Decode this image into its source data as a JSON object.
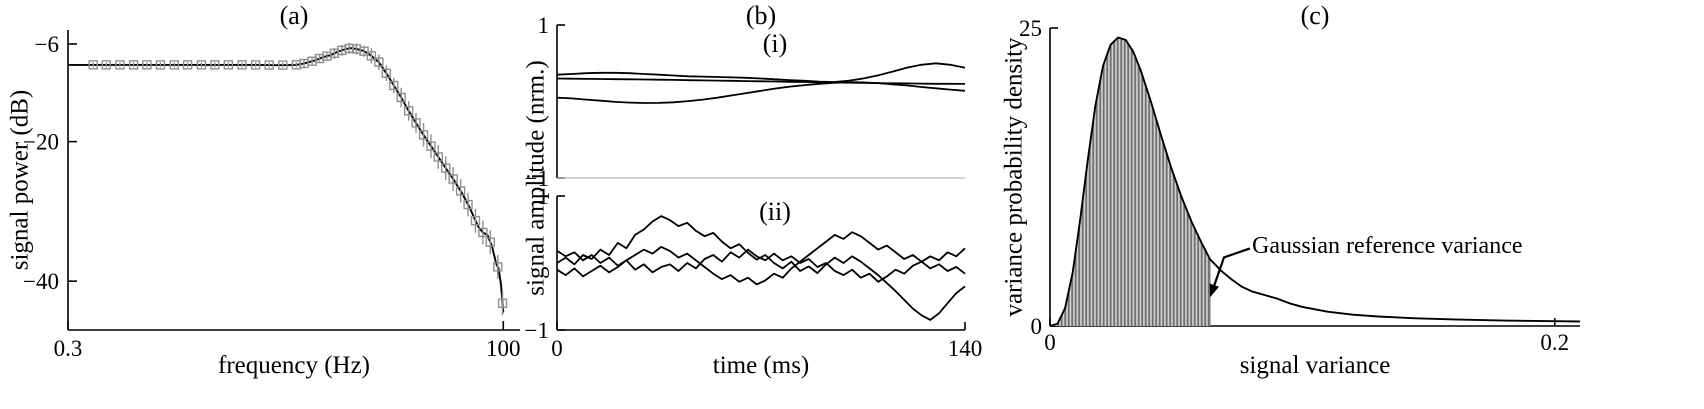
{
  "panels": {
    "a": {
      "title": "(a)",
      "xlabel": "frequency (Hz)",
      "ylabel": "signal power (dB)"
    },
    "b": {
      "title": "(b)",
      "sub_i": "(i)",
      "sub_ii": "(ii)",
      "xlabel": "time (ms)",
      "ylabel": "signal amplitude (nrm.)"
    },
    "c": {
      "title": "(c)",
      "xlabel": "signal variance",
      "ylabel": "variance probability density",
      "annotation": "Gaussian reference variance"
    }
  },
  "colors": {
    "line": "#000000",
    "marker": "#8f8f8f",
    "hatch_dark": "#6f6f6f",
    "hatch_light": "#cfcfcf",
    "separator": "#b8b8b8",
    "axis": "#000000"
  },
  "chart_data": [
    {
      "id": "a-power-spectrum",
      "type": "line",
      "title": "(a)",
      "xlabel": "frequency (Hz)",
      "ylabel": "signal power (dB)",
      "xscale": "log",
      "xlim": [
        0.3,
        125
      ],
      "ylim": [
        -47,
        -4
      ],
      "xticks": [
        0.3,
        100
      ],
      "yticks": [
        -6,
        -20,
        -40
      ],
      "freq": [
        0.3,
        0.4,
        0.5,
        0.65,
        0.85,
        1.1,
        1.4,
        1.8,
        2.3,
        3.0,
        3.8,
        4.9,
        6.3,
        7.0,
        8.0,
        9.0,
        10.0,
        11.0,
        12.0,
        13.0,
        14.0,
        15.5,
        17.0,
        19.0,
        21.0,
        23.0,
        25.5,
        28.0,
        31.0,
        34.0,
        38.0,
        42.0,
        47.0,
        52.0,
        58.0,
        64.0,
        68.0,
        72.0,
        76.0,
        81.0,
        86.0,
        91.0,
        94.0,
        97.0,
        100.0
      ],
      "power_db": [
        -9.0,
        -9.0,
        -9.0,
        -9.0,
        -9.0,
        -9.0,
        -9.0,
        -9.0,
        -9.0,
        -9.0,
        -9.0,
        -9.05,
        -9.0,
        -8.8,
        -8.4,
        -7.9,
        -7.6,
        -7.1,
        -6.8,
        -6.6,
        -6.7,
        -7.0,
        -7.6,
        -8.6,
        -10.2,
        -11.8,
        -13.6,
        -15.4,
        -17.2,
        -18.8,
        -20.6,
        -22.2,
        -24.0,
        -25.6,
        -27.5,
        -29.5,
        -31.0,
        -32.3,
        -33.0,
        -33.4,
        -35.0,
        -37.5,
        -38.2,
        -40.5,
        -44.5
      ],
      "marker_freq": [
        0.42,
        0.5,
        0.6,
        0.72,
        0.86,
        1.03,
        1.24,
        1.48,
        1.78,
        2.13,
        2.55,
        3.06,
        3.67,
        4.4,
        5.27,
        6.32,
        7.0,
        7.8,
        8.6,
        9.5,
        10.5,
        11.6,
        12.8,
        14.1,
        15.6,
        17.2,
        19.0,
        21.0,
        23.2,
        25.6,
        28.3,
        31.2,
        34.5,
        38.1,
        42.0,
        46.4,
        51.2,
        56.6,
        62.5,
        69.0,
        76.2,
        84.1,
        92.9,
        99.0
      ],
      "marker_err_db": [
        0.35,
        0.35,
        0.35,
        0.35,
        0.35,
        0.35,
        0.35,
        0.35,
        0.35,
        0.35,
        0.35,
        0.35,
        0.35,
        0.35,
        0.35,
        0.35,
        0.5,
        0.5,
        0.5,
        0.5,
        0.8,
        0.8,
        0.8,
        0.8,
        0.8,
        1.1,
        1.1,
        1.1,
        1.1,
        1.4,
        1.4,
        1.4,
        1.7,
        1.7,
        1.7,
        1.7,
        1.7,
        1.7,
        1.7,
        1.7,
        1.7,
        1.7,
        1.7,
        1.7
      ]
    },
    {
      "id": "b-i-smooth-signals",
      "type": "line",
      "panel_label": "(i)",
      "xlim": [
        0,
        140
      ],
      "ylim": [
        -1,
        1
      ],
      "yticks": [
        1,
        -1
      ],
      "series": [
        [
          0.35,
          0.36,
          0.37,
          0.375,
          0.375,
          0.37,
          0.36,
          0.35,
          0.34,
          0.33,
          0.325,
          0.32,
          0.315,
          0.31,
          0.3,
          0.29,
          0.28,
          0.27,
          0.26,
          0.255,
          0.27,
          0.3,
          0.34,
          0.39,
          0.44,
          0.48,
          0.5,
          0.48,
          0.44
        ],
        [
          0.3,
          0.298,
          0.296,
          0.294,
          0.292,
          0.29,
          0.288,
          0.285,
          0.282,
          0.279,
          0.276,
          0.273,
          0.27,
          0.267,
          0.264,
          0.261,
          0.258,
          0.255,
          0.252,
          0.249,
          0.246,
          0.243,
          0.24,
          0.238,
          0.236,
          0.234,
          0.232,
          0.231,
          0.23
        ],
        [
          0.05,
          0.04,
          0.025,
          0.01,
          -0.005,
          -0.015,
          -0.02,
          -0.018,
          -0.01,
          0.005,
          0.025,
          0.05,
          0.08,
          0.11,
          0.14,
          0.17,
          0.195,
          0.215,
          0.232,
          0.245,
          0.252,
          0.25,
          0.24,
          0.225,
          0.21,
          0.19,
          0.172,
          0.155,
          0.14
        ]
      ]
    },
    {
      "id": "b-ii-noisy-signals",
      "type": "line",
      "panel_label": "(ii)",
      "xlabel": "time (ms)",
      "xlim": [
        0,
        140
      ],
      "ylim": [
        -1,
        1
      ],
      "xticks": [
        0,
        140
      ],
      "yticks": [
        1,
        -1
      ],
      "series": [
        [
          0.0,
          0.08,
          -0.02,
          0.12,
          0.06,
          0.2,
          0.12,
          0.3,
          0.22,
          0.42,
          0.5,
          0.62,
          0.7,
          0.64,
          0.55,
          0.6,
          0.48,
          0.4,
          0.45,
          0.32,
          0.22,
          0.28,
          0.15,
          0.05,
          0.12,
          0.0,
          -0.08,
          0.02,
          -0.12,
          -0.05,
          -0.15,
          -0.02,
          0.08,
          0.0,
          0.1,
          0.02,
          -0.08,
          -0.18,
          -0.3,
          -0.42,
          -0.55,
          -0.68,
          -0.78,
          -0.85,
          -0.75,
          -0.6,
          -0.45,
          -0.35
        ],
        [
          -0.1,
          -0.18,
          -0.08,
          -0.2,
          -0.12,
          -0.04,
          -0.14,
          -0.06,
          0.04,
          0.12,
          0.2,
          0.14,
          0.24,
          0.18,
          0.08,
          0.14,
          0.04,
          -0.06,
          -0.16,
          -0.24,
          -0.18,
          -0.28,
          -0.22,
          -0.32,
          -0.26,
          -0.16,
          -0.22,
          -0.08,
          0.02,
          0.12,
          0.22,
          0.32,
          0.42,
          0.36,
          0.46,
          0.4,
          0.3,
          0.2,
          0.26,
          0.16,
          0.06,
          0.12,
          0.02,
          -0.08,
          -0.02,
          -0.12,
          -0.06,
          -0.16
        ],
        [
          0.18,
          0.1,
          0.16,
          0.04,
          0.12,
          0.0,
          0.08,
          -0.04,
          0.04,
          -0.1,
          -0.02,
          -0.14,
          -0.06,
          -0.02,
          -0.12,
          0.0,
          -0.08,
          0.06,
          0.12,
          0.02,
          0.16,
          0.08,
          0.2,
          0.1,
          0.04,
          0.14,
          0.04,
          0.1,
          0.0,
          0.06,
          -0.06,
          0.0,
          -0.12,
          -0.18,
          -0.1,
          -0.22,
          -0.16,
          -0.28,
          -0.2,
          -0.1,
          -0.16,
          -0.04,
          0.02,
          0.1,
          0.04,
          0.16,
          0.1,
          0.22
        ]
      ]
    },
    {
      "id": "c-variance-density",
      "type": "area",
      "xlabel": "signal variance",
      "ylabel": "variance probability density",
      "xlim": [
        0,
        0.21
      ],
      "ylim": [
        0,
        25
      ],
      "xticks": [
        0,
        0.2
      ],
      "yticks": [
        0,
        25
      ],
      "x": [
        0,
        0.003,
        0.006,
        0.009,
        0.012,
        0.015,
        0.018,
        0.021,
        0.024,
        0.027,
        0.03,
        0.033,
        0.036,
        0.04,
        0.044,
        0.048,
        0.052,
        0.056,
        0.06,
        0.0634,
        0.068,
        0.072,
        0.076,
        0.08,
        0.085,
        0.09,
        0.095,
        0.1,
        0.11,
        0.12,
        0.13,
        0.145,
        0.16,
        0.18,
        0.2,
        0.21
      ],
      "density": [
        0,
        0.2,
        1.5,
        4.5,
        9.0,
        14.0,
        18.5,
        21.8,
        23.6,
        24.2,
        24.0,
        23.0,
        21.4,
        18.8,
        16.0,
        13.3,
        10.9,
        8.8,
        7.0,
        5.6,
        4.6,
        3.9,
        3.3,
        2.9,
        2.6,
        2.3,
        1.9,
        1.6,
        1.2,
        0.95,
        0.8,
        0.65,
        0.55,
        0.45,
        0.4,
        0.38
      ],
      "shade_until": 0.0634,
      "annotation": {
        "text": "Gaussian reference variance",
        "arrow_tip_x": 0.0634,
        "arrow_tip_y": 2.4
      }
    }
  ]
}
